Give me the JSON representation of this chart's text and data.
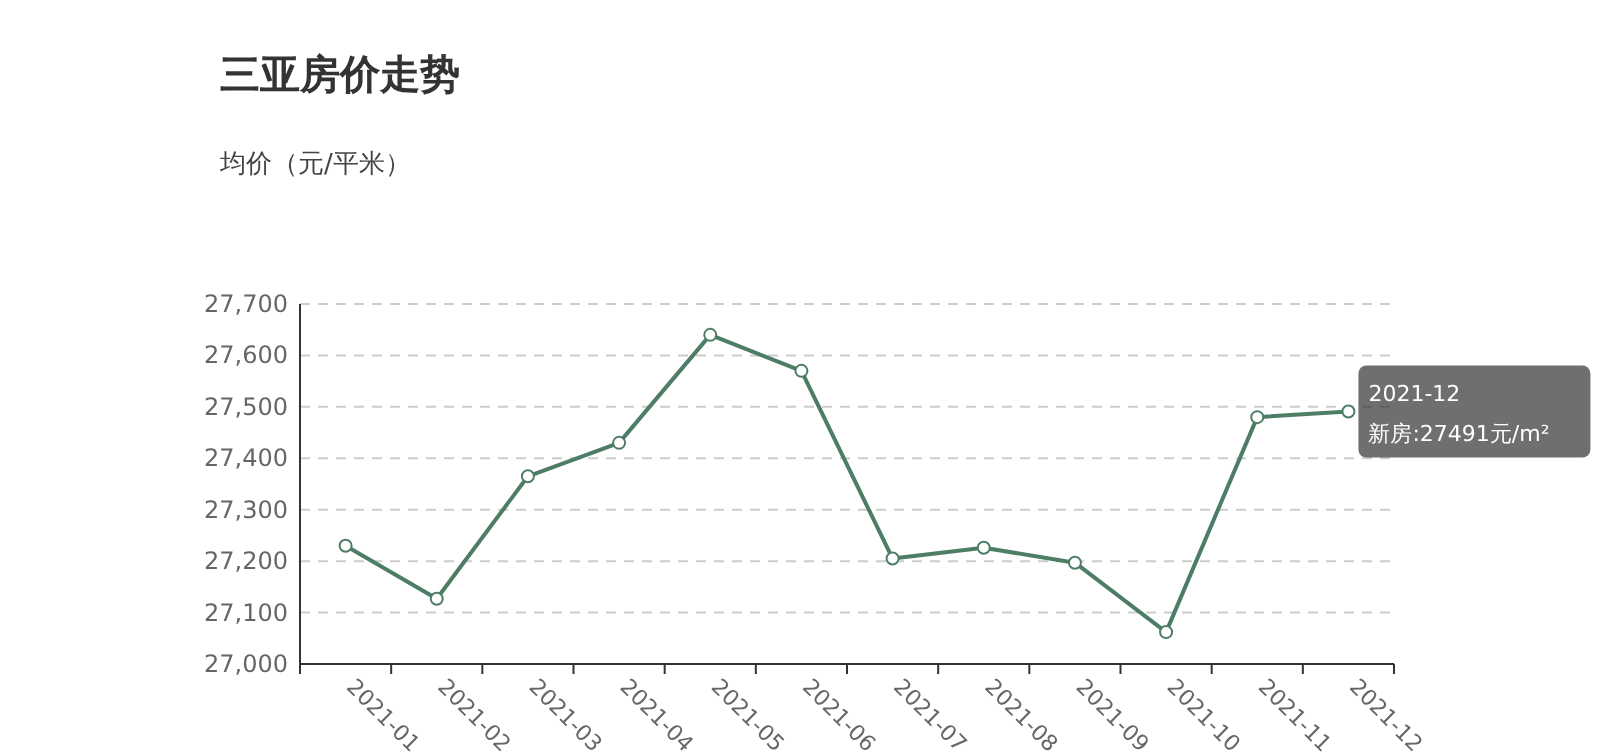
{
  "chart_data": {
    "type": "line",
    "title": "三亚房价走势",
    "ylabel": "均价（元/平米）",
    "categories": [
      "2021-01",
      "2021-02",
      "2021-03",
      "2021-04",
      "2021-05",
      "2021-06",
      "2021-07",
      "2021-08",
      "2021-09",
      "2021-10",
      "2021-11",
      "2021-12"
    ],
    "series": [
      {
        "color": "#4e7d66",
        "values": [
          27230,
          27127,
          27365,
          27430,
          27640,
          27570,
          27205,
          27226,
          27197,
          27062,
          27480,
          27491
        ]
      }
    ],
    "ylim": [
      27000,
      27700
    ],
    "yticks": [
      {
        "value": 27000,
        "label": "27,000"
      },
      {
        "value": 27100,
        "label": "27,100"
      },
      {
        "value": 27200,
        "label": "27,200"
      },
      {
        "value": 27300,
        "label": "27,300"
      },
      {
        "value": 27400,
        "label": "27,400"
      },
      {
        "value": 27500,
        "label": "27,500"
      },
      {
        "value": 27600,
        "label": "27,600"
      },
      {
        "value": 27700,
        "label": "27,700"
      }
    ],
    "grid": "y",
    "marker": "circle",
    "line_style": "solid",
    "annotations": [
      {
        "text": "2021-12\n新房:27491元/m²",
        "x": "2021-12",
        "y": 27491
      }
    ]
  }
}
